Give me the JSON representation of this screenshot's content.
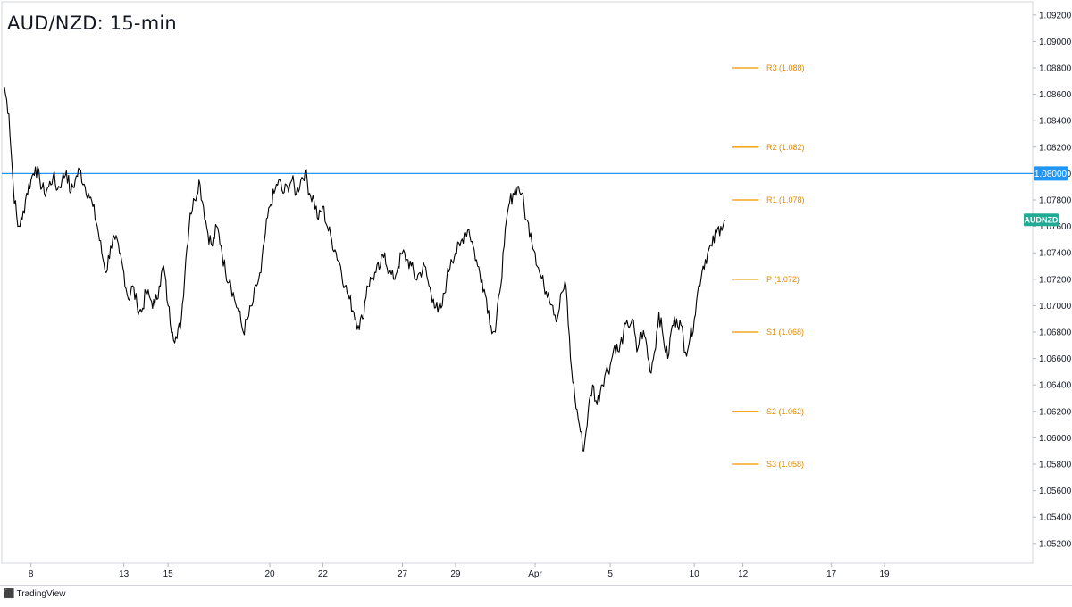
{
  "title": "AUD/NZD: 15-min",
  "brand": {
    "logo_icon": "tradingview-logo-icon",
    "name": "TradingView"
  },
  "colors": {
    "price": "#000000",
    "level_line": "#2196f3",
    "pivot": "#f5a623",
    "pivot_text": "#e08a00",
    "symbol_badge": "#22ab94"
  },
  "chart_data": {
    "type": "line",
    "title": "AUD/NZD: 15-min",
    "symbol": "AUDNZD",
    "ylim": [
      1.0505,
      1.093
    ],
    "y_ticks": [
      "1.05200",
      "1.05400",
      "1.05600",
      "1.05800",
      "1.06000",
      "1.06200",
      "1.06400",
      "1.06600",
      "1.06800",
      "1.07000",
      "1.07200",
      "1.07400",
      "1.07600",
      "1.07800",
      "1.08000",
      "1.08200",
      "1.08400",
      "1.08600",
      "1.08800",
      "1.09000",
      "1.09200"
    ],
    "x_ticks": [
      "8",
      "13",
      "15",
      "20",
      "22",
      "27",
      "29",
      "Apr",
      "5",
      "10",
      "12",
      "17",
      "19"
    ],
    "horizontal_level": {
      "value": 1.08,
      "label": "1.08000"
    },
    "pivot_levels": [
      {
        "label": "R3 (1.088)",
        "value": 1.088
      },
      {
        "label": "R2 (1.082)",
        "value": 1.082
      },
      {
        "label": "R1 (1.078)",
        "value": 1.078
      },
      {
        "label": "P (1.072)",
        "value": 1.072
      },
      {
        "label": "S1 (1.068)",
        "value": 1.068
      },
      {
        "label": "S2 (1.062)",
        "value": 1.062
      },
      {
        "label": "S3 (1.058)",
        "value": 1.058
      }
    ],
    "x_tick_index": [
      6,
      27,
      37,
      60,
      72,
      90,
      102,
      120,
      137,
      156,
      167,
      187,
      199
    ],
    "series": [
      {
        "values": [
          1.0865,
          1.0845,
          1.079,
          1.076,
          1.0765,
          1.0785,
          1.0795,
          1.0805,
          1.0795,
          1.0785,
          1.079,
          1.0798,
          1.0788,
          1.0795,
          1.0802,
          1.0785,
          1.0795,
          1.0803,
          1.0792,
          1.0785,
          1.0775,
          1.076,
          1.074,
          1.0725,
          1.0745,
          1.075,
          1.074,
          1.0725,
          1.0705,
          1.0715,
          1.07,
          1.0695,
          1.071,
          1.0705,
          1.07,
          1.0715,
          1.073,
          1.07,
          1.068,
          1.0675,
          1.069,
          1.0735,
          1.077,
          1.078,
          1.0795,
          1.0775,
          1.0755,
          1.0745,
          1.076,
          1.0745,
          1.0725,
          1.072,
          1.0705,
          1.0695,
          1.068,
          1.069,
          1.07,
          1.0715,
          1.0725,
          1.0755,
          1.0775,
          1.0785,
          1.0795,
          1.0785,
          1.079,
          1.0795,
          1.0785,
          1.0795,
          1.0802,
          1.0785,
          1.078,
          1.0765,
          1.0775,
          1.076,
          1.075,
          1.074,
          1.073,
          1.0715,
          1.0705,
          1.0695,
          1.0685,
          1.069,
          1.0715,
          1.072,
          1.0725,
          1.073,
          1.074,
          1.0725,
          1.072,
          1.073,
          1.074,
          1.0735,
          1.073,
          1.072,
          1.0725,
          1.073,
          1.0715,
          1.0705,
          1.0695,
          1.07,
          1.072,
          1.0735,
          1.074,
          1.0745,
          1.0755,
          1.0758,
          1.0745,
          1.073,
          1.072,
          1.0705,
          1.0685,
          1.068,
          1.071,
          1.0745,
          1.0775,
          1.0785,
          1.079,
          1.0785,
          1.0765,
          1.0755,
          1.074,
          1.0725,
          1.0715,
          1.071,
          1.07,
          1.069,
          1.071,
          1.0715,
          1.066,
          1.063,
          1.061,
          1.059,
          1.062,
          1.064,
          1.0625,
          1.064,
          1.065,
          1.0655,
          1.067,
          1.0665,
          1.068,
          1.0685,
          1.069,
          1.0665,
          1.068,
          1.0675,
          1.065,
          1.0665,
          1.0695,
          1.0675,
          1.066,
          1.0685,
          1.069,
          1.0685,
          1.0665,
          1.0675,
          1.069,
          1.0715,
          1.073,
          1.074,
          1.0745,
          1.0755,
          1.076,
          1.0765
        ]
      }
    ]
  }
}
